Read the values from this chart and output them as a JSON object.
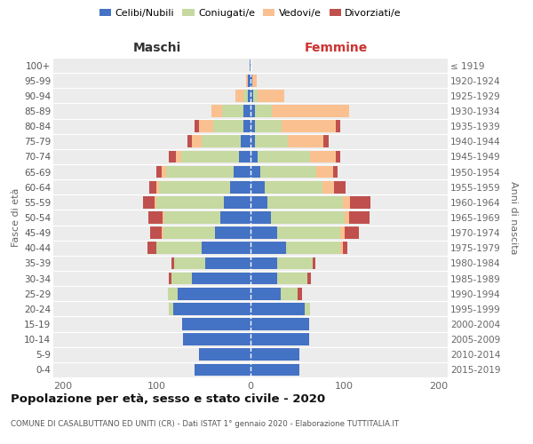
{
  "age_groups": [
    "0-4",
    "5-9",
    "10-14",
    "15-19",
    "20-24",
    "25-29",
    "30-34",
    "35-39",
    "40-44",
    "45-49",
    "50-54",
    "55-59",
    "60-64",
    "65-69",
    "70-74",
    "75-79",
    "80-84",
    "85-89",
    "90-94",
    "95-99",
    "100+"
  ],
  "birth_years": [
    "2015-2019",
    "2010-2014",
    "2005-2009",
    "2000-2004",
    "1995-1999",
    "1990-1994",
    "1985-1989",
    "1980-1984",
    "1975-1979",
    "1970-1974",
    "1965-1969",
    "1960-1964",
    "1955-1959",
    "1950-1954",
    "1945-1949",
    "1940-1944",
    "1935-1939",
    "1930-1934",
    "1925-1929",
    "1920-1924",
    "≤ 1919"
  ],
  "males": {
    "celibe": [
      60,
      55,
      72,
      73,
      82,
      78,
      62,
      48,
      52,
      38,
      32,
      28,
      22,
      18,
      12,
      10,
      8,
      8,
      3,
      3,
      1
    ],
    "coniugato": [
      0,
      0,
      0,
      0,
      5,
      10,
      22,
      33,
      48,
      55,
      60,
      72,
      75,
      72,
      62,
      42,
      32,
      22,
      5,
      0,
      0
    ],
    "vedovo": [
      0,
      0,
      0,
      0,
      0,
      0,
      0,
      0,
      0,
      2,
      2,
      2,
      3,
      5,
      5,
      10,
      15,
      12,
      8,
      2,
      0
    ],
    "divorziato": [
      0,
      0,
      0,
      0,
      0,
      0,
      3,
      3,
      10,
      12,
      15,
      12,
      8,
      5,
      8,
      5,
      5,
      0,
      0,
      0,
      0
    ]
  },
  "females": {
    "nubile": [
      52,
      52,
      62,
      62,
      58,
      32,
      28,
      28,
      38,
      28,
      22,
      18,
      15,
      10,
      8,
      5,
      5,
      5,
      3,
      2,
      0
    ],
    "coniugata": [
      0,
      0,
      0,
      0,
      5,
      18,
      33,
      38,
      58,
      68,
      78,
      80,
      62,
      60,
      55,
      35,
      28,
      18,
      5,
      0,
      0
    ],
    "vedova": [
      0,
      0,
      0,
      0,
      0,
      0,
      0,
      0,
      2,
      4,
      5,
      8,
      12,
      18,
      28,
      38,
      58,
      82,
      28,
      5,
      0
    ],
    "divorziata": [
      0,
      0,
      0,
      0,
      0,
      5,
      3,
      3,
      5,
      15,
      22,
      22,
      12,
      5,
      5,
      5,
      5,
      0,
      0,
      0,
      0
    ]
  },
  "colors": {
    "celibe": "#4472C4",
    "coniugato": "#C6D9A0",
    "vedovo": "#FAC090",
    "divorziato": "#C0504D"
  },
  "title": "Popolazione per età, sesso e stato civile - 2020",
  "subtitle": "COMUNE DI CASALBUTTANO ED UNITI (CR) - Dati ISTAT 1° gennaio 2020 - Elaborazione TUTTITALIA.IT",
  "xlabel_left": "Maschi",
  "xlabel_right": "Femmine",
  "ylabel_left": "Fasce di età",
  "ylabel_right": "Anni di nascita",
  "xlim": 210,
  "bg_color": "#ececec",
  "legend_labels": [
    "Celibi/Nubili",
    "Coniugati/e",
    "Vedovi/e",
    "Divorziati/e"
  ]
}
